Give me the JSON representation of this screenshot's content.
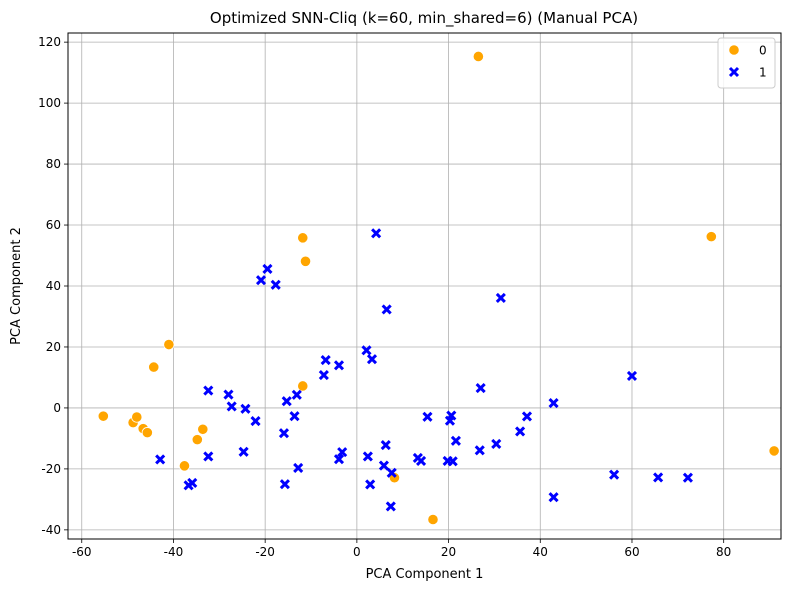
{
  "chart_data": {
    "type": "scatter",
    "title": "Optimized SNN-Cliq (k=60, min_shared=6) (Manual PCA)",
    "xlabel": "PCA Component 1",
    "ylabel": "PCA Component 2",
    "xlim": [
      -63,
      92.5
    ],
    "ylim": [
      -43,
      123
    ],
    "xticks": [
      -60,
      -40,
      -20,
      0,
      20,
      40,
      60,
      80
    ],
    "yticks": [
      -40,
      -20,
      0,
      20,
      40,
      60,
      80,
      100,
      120
    ],
    "grid": true,
    "legend_position": "top-right",
    "series": [
      {
        "name": "0",
        "marker": "circle",
        "color": "#FFA500",
        "points": [
          [
            26.5,
            115.3
          ],
          [
            77.3,
            56.2
          ],
          [
            91.0,
            -14.1
          ],
          [
            -11.8,
            55.8
          ],
          [
            -11.2,
            48.1
          ],
          [
            -41.0,
            20.8
          ],
          [
            -44.3,
            13.4
          ],
          [
            -11.8,
            7.2
          ],
          [
            -55.3,
            -2.7
          ],
          [
            -48.8,
            -4.8
          ],
          [
            -48.0,
            -3.0
          ],
          [
            -46.6,
            -6.8
          ],
          [
            -45.7,
            -8.1
          ],
          [
            -33.6,
            -7.0
          ],
          [
            -34.8,
            -10.4
          ],
          [
            -37.6,
            -19.0
          ],
          [
            8.2,
            -22.9
          ],
          [
            16.6,
            -36.6
          ]
        ]
      },
      {
        "name": "1",
        "marker": "x",
        "color": "#0000FF",
        "points": [
          [
            4.2,
            57.3
          ],
          [
            31.4,
            36.1
          ],
          [
            6.5,
            32.3
          ],
          [
            -19.5,
            45.6
          ],
          [
            -20.9,
            41.9
          ],
          [
            -17.7,
            40.4
          ],
          [
            2.1,
            18.9
          ],
          [
            3.3,
            16.0
          ],
          [
            -6.8,
            15.7
          ],
          [
            -7.2,
            10.8
          ],
          [
            -3.9,
            14.0
          ],
          [
            60.0,
            10.5
          ],
          [
            27.0,
            6.5
          ],
          [
            42.9,
            1.6
          ],
          [
            -32.4,
            5.7
          ],
          [
            -28.0,
            4.4
          ],
          [
            -27.3,
            0.5
          ],
          [
            -24.3,
            -0.3
          ],
          [
            -22.1,
            -4.3
          ],
          [
            -15.3,
            2.2
          ],
          [
            -13.1,
            4.3
          ],
          [
            -13.6,
            -2.7
          ],
          [
            -15.9,
            -8.3
          ],
          [
            15.4,
            -2.9
          ],
          [
            20.6,
            -2.5
          ],
          [
            20.3,
            -4.2
          ],
          [
            37.1,
            -2.8
          ],
          [
            35.6,
            -7.7
          ],
          [
            21.6,
            -10.8
          ],
          [
            30.4,
            -11.8
          ],
          [
            26.8,
            -13.9
          ],
          [
            -42.9,
            -16.9
          ],
          [
            -36.7,
            -25.4
          ],
          [
            -35.9,
            -24.6
          ],
          [
            -32.4,
            -15.9
          ],
          [
            -24.7,
            -14.4
          ],
          [
            -12.8,
            -19.7
          ],
          [
            -15.7,
            -25.0
          ],
          [
            -3.9,
            -16.8
          ],
          [
            -3.2,
            -14.5
          ],
          [
            2.4,
            -15.9
          ],
          [
            2.9,
            -25.1
          ],
          [
            6.3,
            -12.2
          ],
          [
            5.9,
            -18.9
          ],
          [
            7.6,
            -21.3
          ],
          [
            7.4,
            -32.3
          ],
          [
            13.3,
            -16.4
          ],
          [
            14.0,
            -17.4
          ],
          [
            19.8,
            -17.4
          ],
          [
            20.9,
            -17.5
          ],
          [
            56.1,
            -21.9
          ],
          [
            65.7,
            -22.8
          ],
          [
            72.2,
            -22.9
          ],
          [
            42.9,
            -29.3
          ]
        ]
      }
    ]
  }
}
